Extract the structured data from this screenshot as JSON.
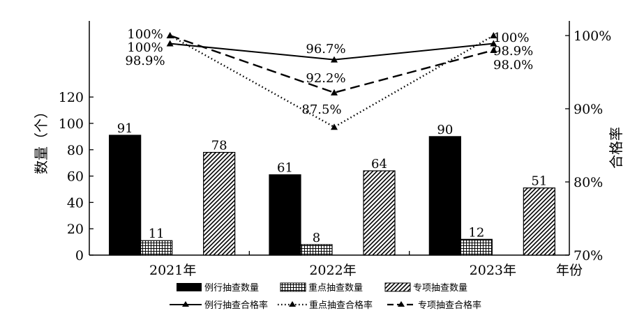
{
  "chart_data": {
    "type": "bar+line",
    "categories": [
      "2021年",
      "2022年",
      "2023年"
    ],
    "xlabel": "年份",
    "ylabel": "数量（个）",
    "ylabel_right": "合格率",
    "ylim": [
      0,
      140
    ],
    "y_ticks": [
      "0",
      "20",
      "40",
      "60",
      "80",
      "100",
      "120"
    ],
    "ylim_right": [
      70,
      102
    ],
    "y_right_ticks": [
      "70%",
      "80%",
      "90%",
      "100%"
    ],
    "bar_series": [
      {
        "name": "例行抽查数量",
        "values": [
          91,
          61,
          90
        ],
        "labels": [
          "91",
          "61",
          "90"
        ],
        "pattern": "solid-black"
      },
      {
        "name": "重点抽查数量",
        "values": [
          11,
          8,
          12
        ],
        "labels": [
          "11",
          "8",
          "12"
        ],
        "pattern": "crosshatch"
      },
      {
        "name": "专项抽查数量",
        "values": [
          78,
          64,
          51
        ],
        "labels": [
          "78",
          "64",
          "51"
        ],
        "pattern": "diagonal"
      }
    ],
    "line_series": [
      {
        "name": "例行抽查合格率",
        "values": [
          98.9,
          96.7,
          98.9
        ],
        "labels": [
          "98.9%",
          "96.7%",
          "98.9%"
        ],
        "dash": "solid"
      },
      {
        "name": "重点抽查合格率",
        "values": [
          100,
          87.5,
          100
        ],
        "labels": [
          "100%",
          "87.5%",
          "100%"
        ],
        "dash": "dotted"
      },
      {
        "name": "专项抽查合格率",
        "values": [
          100,
          92.2,
          98.0
        ],
        "labels": [
          "100%",
          "92.2%",
          "98.0%"
        ],
        "dash": "dashed"
      }
    ],
    "legend_position": "bottom"
  }
}
